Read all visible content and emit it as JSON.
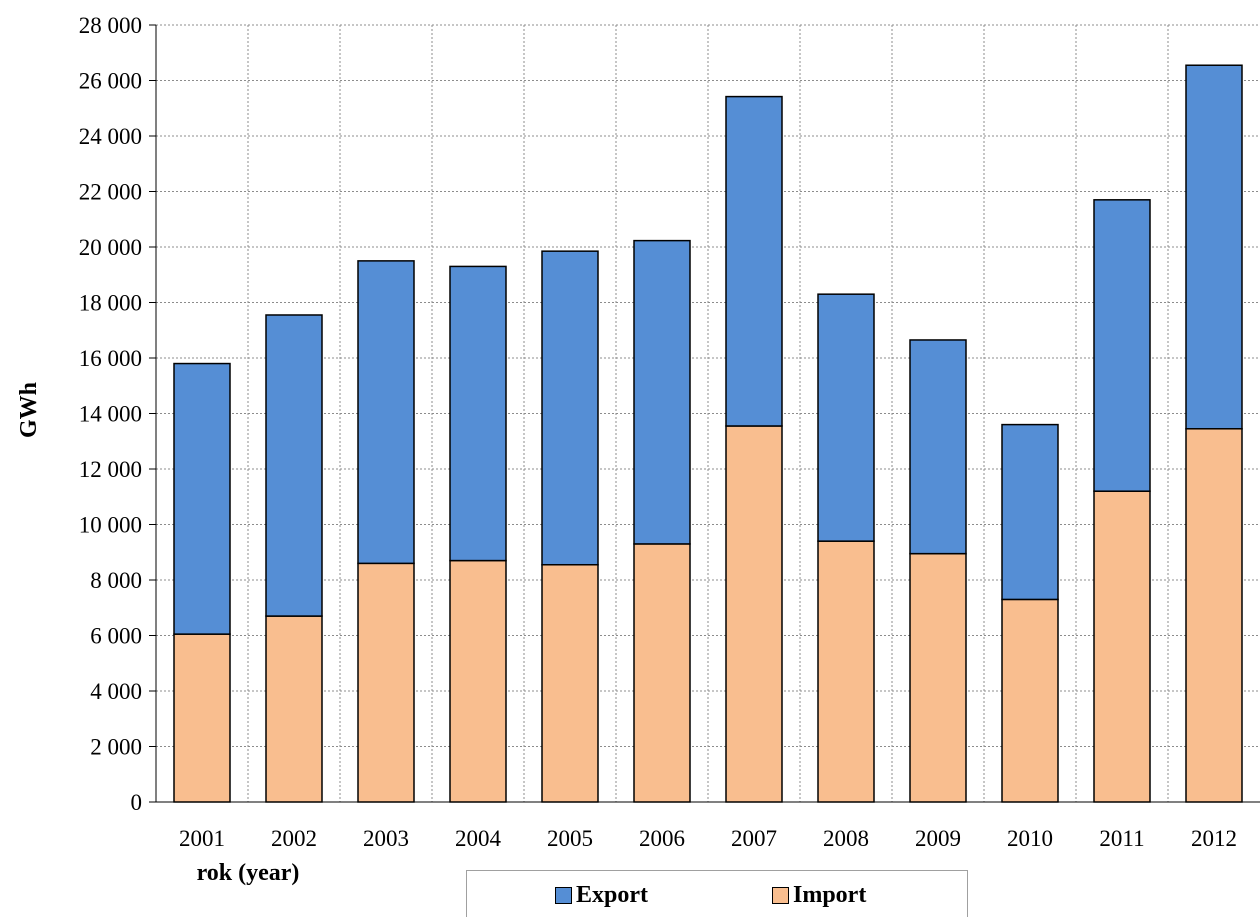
{
  "chart_data": {
    "type": "bar",
    "stacked": true,
    "categories": [
      "2001",
      "2002",
      "2003",
      "2004",
      "2005",
      "2006",
      "2007",
      "2008",
      "2009",
      "2010",
      "2011",
      "2012"
    ],
    "series": [
      {
        "name": "Import",
        "color": "#F9BE8F",
        "values": [
          6050,
          6700,
          8600,
          8700,
          8550,
          9300,
          13550,
          9400,
          8950,
          7300,
          11200,
          13450
        ]
      },
      {
        "name": "Export",
        "color": "#558ED5",
        "values": [
          9750,
          10850,
          10900,
          10600,
          11300,
          10930,
          11870,
          8900,
          7700,
          6300,
          10500,
          13100
        ]
      }
    ],
    "xlabel": "rok (year)",
    "ylabel": "GWh",
    "ylim": [
      0,
      28000
    ],
    "yticks": [
      "0",
      "2 000",
      "4 000",
      "6 000",
      "8 000",
      "10 000",
      "12 000",
      "14 000",
      "16 000",
      "18 000",
      "20 000",
      "22 000",
      "24 000",
      "26 000",
      "28 000"
    ],
    "grid": true,
    "legend_position": "bottom"
  }
}
